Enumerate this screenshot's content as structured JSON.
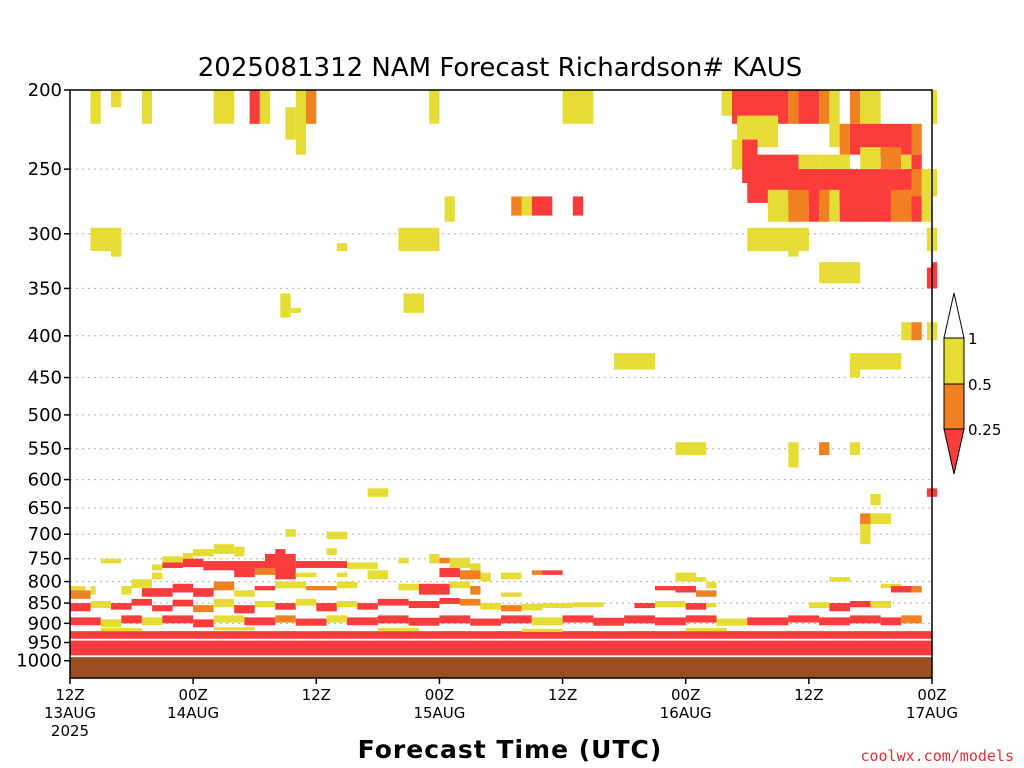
{
  "colors": {
    "high": "#e5dd35",
    "mid": "#f08020",
    "low": "#fa3c3c",
    "ground": "#9a4e22",
    "grid": "#b0b0b0"
  },
  "credit": "coolwx.com/models",
  "chart_data": {
    "type": "heatmap",
    "title": "2025081312 NAM Forecast Richardson# KAUS",
    "xlabel": "Forecast Time (UTC)",
    "ylabel": "",
    "y_scale": "log-pressure, inverted",
    "ylim": [
      1050,
      200
    ],
    "xlim": [
      0,
      84
    ],
    "grid": "horizontal dotted",
    "y_ticks": [
      200,
      250,
      300,
      350,
      400,
      450,
      500,
      550,
      600,
      650,
      700,
      750,
      800,
      850,
      900,
      950,
      1000
    ],
    "y_tick_labels": [
      "200",
      "250",
      "300",
      "350",
      "400",
      "450",
      "500",
      "550",
      "600",
      "650",
      "700",
      "750",
      "800",
      "850",
      "900",
      "950",
      "1000"
    ],
    "x_ticks": [
      {
        "hour": 0,
        "line1": "12Z",
        "line2": "13AUG",
        "line3": "2025"
      },
      {
        "hour": 12,
        "line1": "00Z",
        "line2": "14AUG",
        "line3": ""
      },
      {
        "hour": 24,
        "line1": "12Z",
        "line2": "",
        "line3": ""
      },
      {
        "hour": 36,
        "line1": "00Z",
        "line2": "15AUG",
        "line3": ""
      },
      {
        "hour": 48,
        "line1": "12Z",
        "line2": "",
        "line3": ""
      },
      {
        "hour": 60,
        "line1": "00Z",
        "line2": "16AUG",
        "line3": ""
      },
      {
        "hour": 72,
        "line1": "12Z",
        "line2": "",
        "line3": ""
      },
      {
        "hour": 84,
        "line1": "00Z",
        "line2": "17AUG",
        "line3": ""
      }
    ],
    "legend": {
      "placement": "right",
      "levels": [
        {
          "label": "1",
          "value": 1
        },
        {
          "label": "0.5",
          "value": 0.5
        },
        {
          "label": "0.25",
          "value": 0.25
        }
      ]
    },
    "ground_below_hpa": 990,
    "cells": [
      [
        2,
        3,
        200,
        220,
        "high"
      ],
      [
        4,
        5,
        200,
        210,
        "high"
      ],
      [
        7,
        8,
        200,
        220,
        "high"
      ],
      [
        14,
        16,
        200,
        220,
        "high"
      ],
      [
        17.5,
        18.5,
        200,
        220,
        "low"
      ],
      [
        18.5,
        19.5,
        200,
        220,
        "high"
      ],
      [
        22,
        23,
        200,
        220,
        "high"
      ],
      [
        23,
        24,
        200,
        220,
        "mid"
      ],
      [
        21,
        22,
        210,
        230,
        "high"
      ],
      [
        22,
        23,
        220,
        240,
        "high"
      ],
      [
        35,
        36,
        200,
        220,
        "high"
      ],
      [
        48,
        51,
        200,
        220,
        "high"
      ],
      [
        63.5,
        64.5,
        200,
        215,
        "high"
      ],
      [
        64.5,
        70,
        200,
        220,
        "low"
      ],
      [
        70,
        71,
        200,
        220,
        "mid"
      ],
      [
        71,
        73,
        200,
        220,
        "low"
      ],
      [
        73,
        74,
        200,
        220,
        "mid"
      ],
      [
        74,
        75,
        200,
        220,
        "high"
      ],
      [
        76,
        77,
        200,
        220,
        "mid"
      ],
      [
        77,
        79,
        200,
        220,
        "high"
      ],
      [
        84,
        84.5,
        200,
        220,
        "high"
      ],
      [
        65,
        67,
        215,
        230,
        "high"
      ],
      [
        67,
        69,
        215,
        235,
        "high"
      ],
      [
        74,
        75,
        220,
        235,
        "high"
      ],
      [
        75,
        76,
        220,
        240,
        "mid"
      ],
      [
        76,
        82,
        220,
        240,
        "low"
      ],
      [
        82,
        83,
        220,
        240,
        "mid"
      ],
      [
        64.5,
        65.5,
        230,
        250,
        "high"
      ],
      [
        65.5,
        67,
        230,
        260,
        "low"
      ],
      [
        67,
        71,
        240,
        265,
        "low"
      ],
      [
        71,
        73,
        240,
        260,
        "high"
      ],
      [
        73,
        76,
        240,
        265,
        "high"
      ],
      [
        77,
        79,
        235,
        250,
        "high"
      ],
      [
        79,
        81,
        235,
        250,
        "mid"
      ],
      [
        81,
        82,
        240,
        250,
        "high"
      ],
      [
        82,
        83,
        240,
        260,
        "low"
      ],
      [
        66,
        80,
        250,
        275,
        "low"
      ],
      [
        80,
        82,
        250,
        280,
        "low"
      ],
      [
        82,
        83,
        250,
        280,
        "mid"
      ],
      [
        83,
        84,
        250,
        270,
        "high"
      ],
      [
        84,
        84.5,
        250,
        270,
        "high"
      ],
      [
        68,
        70,
        265,
        290,
        "high"
      ],
      [
        70,
        72,
        265,
        290,
        "mid"
      ],
      [
        72,
        73,
        265,
        290,
        "low"
      ],
      [
        73,
        74,
        265,
        290,
        "mid"
      ],
      [
        74,
        75,
        265,
        290,
        "high"
      ],
      [
        75,
        80,
        265,
        290,
        "low"
      ],
      [
        80,
        82,
        265,
        290,
        "mid"
      ],
      [
        82,
        83,
        270,
        290,
        "low"
      ],
      [
        83,
        84,
        270,
        290,
        "high"
      ],
      [
        36.5,
        37.5,
        270,
        290,
        "high"
      ],
      [
        43,
        44,
        270,
        285,
        "mid"
      ],
      [
        44,
        45,
        270,
        285,
        "high"
      ],
      [
        45,
        47,
        270,
        285,
        "low"
      ],
      [
        49,
        50,
        270,
        285,
        "low"
      ],
      [
        2,
        5,
        295,
        315,
        "high"
      ],
      [
        4,
        5,
        305,
        320,
        "high"
      ],
      [
        26,
        27,
        308,
        315,
        "high"
      ],
      [
        32,
        36,
        295,
        315,
        "high"
      ],
      [
        66,
        72,
        295,
        315,
        "high"
      ],
      [
        70,
        71,
        305,
        320,
        "high"
      ],
      [
        83.5,
        84.5,
        295,
        315,
        "high"
      ],
      [
        73,
        77,
        325,
        345,
        "high"
      ],
      [
        84,
        84.5,
        325,
        350,
        "low"
      ],
      [
        83.5,
        84,
        330,
        350,
        "low"
      ],
      [
        20.5,
        21.5,
        355,
        380,
        "high"
      ],
      [
        21.5,
        22.5,
        370,
        375,
        "high"
      ],
      [
        32.5,
        34.5,
        355,
        375,
        "high"
      ],
      [
        81,
        82,
        385,
        405,
        "high"
      ],
      [
        82,
        83,
        385,
        405,
        "mid"
      ],
      [
        83.5,
        84.5,
        385,
        405,
        "high"
      ],
      [
        53,
        57,
        420,
        440,
        "high"
      ],
      [
        76,
        81,
        420,
        440,
        "high"
      ],
      [
        76,
        77,
        430,
        450,
        "high"
      ],
      [
        59,
        62,
        540,
        560,
        "high"
      ],
      [
        70,
        71,
        540,
        580,
        "high"
      ],
      [
        73,
        74,
        540,
        560,
        "mid"
      ],
      [
        76,
        77,
        540,
        560,
        "high"
      ],
      [
        29,
        31,
        615,
        630,
        "high"
      ],
      [
        83.5,
        84.5,
        615,
        630,
        "low"
      ],
      [
        78,
        79,
        625,
        645,
        "high"
      ],
      [
        77,
        78,
        660,
        680,
        "mid"
      ],
      [
        77,
        78,
        680,
        700,
        "high"
      ],
      [
        78,
        80,
        660,
        680,
        "high"
      ],
      [
        77,
        78,
        700,
        720,
        "high"
      ],
      [
        21,
        22,
        690,
        705,
        "high"
      ],
      [
        25,
        27,
        695,
        710,
        "high"
      ],
      [
        3,
        5,
        750,
        760,
        "high"
      ],
      [
        8,
        9,
        762,
        775,
        "high"
      ],
      [
        9,
        11,
        745,
        758,
        "high"
      ],
      [
        11,
        12,
        738,
        750,
        "high"
      ],
      [
        12,
        14,
        730,
        745,
        "high"
      ],
      [
        14,
        16,
        720,
        740,
        "high"
      ],
      [
        16,
        17,
        725,
        745,
        "high"
      ],
      [
        20,
        21,
        730,
        745,
        "low"
      ],
      [
        25,
        26,
        728,
        742,
        "high"
      ],
      [
        9,
        11,
        758,
        770,
        "low"
      ],
      [
        11,
        13,
        750,
        768,
        "low"
      ],
      [
        13,
        22,
        755,
        775,
        "low"
      ],
      [
        22,
        27,
        755,
        770,
        "low"
      ],
      [
        27,
        30,
        758,
        772,
        "high"
      ],
      [
        19,
        22,
        740,
        760,
        "low"
      ],
      [
        16,
        18,
        768,
        790,
        "low"
      ],
      [
        18,
        20,
        770,
        785,
        "mid"
      ],
      [
        20,
        22,
        770,
        795,
        "low"
      ],
      [
        22,
        24,
        780,
        790,
        "high"
      ],
      [
        32,
        33,
        748,
        760,
        "high"
      ],
      [
        35,
        36,
        740,
        760,
        "high"
      ],
      [
        36,
        37,
        748,
        760,
        "mid"
      ],
      [
        37,
        39,
        748,
        770,
        "high"
      ],
      [
        39,
        40,
        760,
        775,
        "high"
      ],
      [
        36,
        38,
        770,
        790,
        "low"
      ],
      [
        38,
        40,
        775,
        795,
        "mid"
      ],
      [
        40,
        41,
        780,
        800,
        "high"
      ],
      [
        42,
        44,
        780,
        795,
        "high"
      ],
      [
        45,
        46,
        775,
        785,
        "mid"
      ],
      [
        46,
        48,
        775,
        785,
        "low"
      ],
      [
        29,
        31,
        775,
        795,
        "high"
      ],
      [
        26,
        27,
        780,
        790,
        "high"
      ],
      [
        8,
        9,
        780,
        795,
        "high"
      ],
      [
        0,
        1.5,
        810,
        825,
        "high"
      ],
      [
        0,
        2,
        820,
        840,
        "mid"
      ],
      [
        2,
        2.5,
        810,
        830,
        "high"
      ],
      [
        5,
        6,
        810,
        830,
        "high"
      ],
      [
        6,
        8,
        795,
        815,
        "high"
      ],
      [
        7,
        10,
        815,
        835,
        "low"
      ],
      [
        10,
        12,
        805,
        825,
        "low"
      ],
      [
        12,
        14,
        815,
        835,
        "low"
      ],
      [
        14,
        16,
        800,
        820,
        "mid"
      ],
      [
        16,
        18,
        820,
        835,
        "high"
      ],
      [
        18,
        20,
        810,
        820,
        "low"
      ],
      [
        20,
        23,
        800,
        815,
        "high"
      ],
      [
        23,
        26,
        810,
        820,
        "mid"
      ],
      [
        26,
        28,
        800,
        815,
        "high"
      ],
      [
        32,
        34,
        805,
        820,
        "high"
      ],
      [
        34,
        37,
        805,
        830,
        "low"
      ],
      [
        37,
        39,
        800,
        815,
        "high"
      ],
      [
        39,
        40,
        810,
        830,
        "mid"
      ],
      [
        42,
        44,
        825,
        835,
        "high"
      ],
      [
        59,
        61,
        780,
        800,
        "high"
      ],
      [
        61,
        62,
        790,
        800,
        "high"
      ],
      [
        62,
        63,
        800,
        815,
        "high"
      ],
      [
        57,
        59,
        810,
        820,
        "low"
      ],
      [
        59,
        61,
        810,
        825,
        "low"
      ],
      [
        61,
        63,
        820,
        835,
        "mid"
      ],
      [
        79,
        81,
        805,
        815,
        "high"
      ],
      [
        80,
        82,
        810,
        825,
        "low"
      ],
      [
        82,
        83,
        810,
        825,
        "mid"
      ],
      [
        74,
        76,
        790,
        800,
        "high"
      ],
      [
        0,
        2,
        850,
        870,
        "low"
      ],
      [
        2,
        4,
        845,
        862,
        "high"
      ],
      [
        4,
        6,
        850,
        866,
        "low"
      ],
      [
        6,
        8,
        840,
        856,
        "low"
      ],
      [
        8,
        10,
        855,
        870,
        "low"
      ],
      [
        10,
        12,
        842,
        858,
        "low"
      ],
      [
        12,
        14,
        855,
        872,
        "mid"
      ],
      [
        14,
        16,
        840,
        860,
        "high"
      ],
      [
        16,
        18,
        855,
        875,
        "low"
      ],
      [
        18,
        20,
        845,
        860,
        "high"
      ],
      [
        20,
        22,
        850,
        866,
        "low"
      ],
      [
        22,
        24,
        840,
        856,
        "high"
      ],
      [
        24,
        26,
        850,
        870,
        "low"
      ],
      [
        26,
        28,
        845,
        860,
        "high"
      ],
      [
        28,
        30,
        850,
        866,
        "low"
      ],
      [
        30,
        33,
        840,
        856,
        "low"
      ],
      [
        33,
        36,
        845,
        862,
        "low"
      ],
      [
        36,
        38,
        838,
        852,
        "low"
      ],
      [
        38,
        40,
        840,
        856,
        "mid"
      ],
      [
        40,
        42,
        850,
        866,
        "high"
      ],
      [
        42,
        44,
        855,
        870,
        "mid"
      ],
      [
        44,
        46,
        852,
        868,
        "high"
      ],
      [
        46,
        49,
        850,
        862,
        "high"
      ],
      [
        49,
        52,
        848,
        860,
        "high"
      ],
      [
        55,
        57,
        850,
        862,
        "low"
      ],
      [
        57,
        60,
        845,
        860,
        "high"
      ],
      [
        60,
        62,
        850,
        866,
        "low"
      ],
      [
        62,
        63,
        850,
        860,
        "high"
      ],
      [
        72,
        74,
        848,
        862,
        "high"
      ],
      [
        74,
        76,
        850,
        870,
        "low"
      ],
      [
        76,
        78,
        845,
        860,
        "low"
      ],
      [
        78,
        80,
        845,
        862,
        "high"
      ],
      [
        0,
        3,
        885,
        905,
        "low"
      ],
      [
        3,
        5,
        890,
        910,
        "high"
      ],
      [
        5,
        7,
        880,
        900,
        "low"
      ],
      [
        7,
        9,
        885,
        905,
        "high"
      ],
      [
        9,
        12,
        880,
        900,
        "low"
      ],
      [
        12,
        14,
        890,
        910,
        "low"
      ],
      [
        14,
        17,
        880,
        898,
        "high"
      ],
      [
        17,
        20,
        885,
        905,
        "low"
      ],
      [
        20,
        22,
        880,
        898,
        "mid"
      ],
      [
        22,
        25,
        888,
        906,
        "low"
      ],
      [
        25,
        27,
        880,
        898,
        "high"
      ],
      [
        27,
        30,
        885,
        905,
        "low"
      ],
      [
        30,
        33,
        880,
        900,
        "low"
      ],
      [
        33,
        36,
        886,
        906,
        "low"
      ],
      [
        36,
        39,
        880,
        900,
        "low"
      ],
      [
        39,
        42,
        888,
        906,
        "low"
      ],
      [
        42,
        45,
        880,
        900,
        "low"
      ],
      [
        45,
        48,
        885,
        905,
        "high"
      ],
      [
        48,
        51,
        880,
        898,
        "low"
      ],
      [
        51,
        54,
        886,
        906,
        "low"
      ],
      [
        54,
        57,
        880,
        900,
        "low"
      ],
      [
        57,
        60,
        885,
        905,
        "low"
      ],
      [
        60,
        63,
        880,
        898,
        "low"
      ],
      [
        63,
        66,
        888,
        906,
        "high"
      ],
      [
        66,
        70,
        885,
        905,
        "low"
      ],
      [
        70,
        73,
        880,
        898,
        "low"
      ],
      [
        73,
        76,
        885,
        905,
        "low"
      ],
      [
        76,
        79,
        880,
        900,
        "low"
      ],
      [
        79,
        81,
        885,
        905,
        "low"
      ],
      [
        81,
        83,
        880,
        900,
        "mid"
      ],
      [
        0,
        84,
        920,
        940,
        "low"
      ],
      [
        3,
        7,
        912,
        920,
        "high"
      ],
      [
        14,
        18,
        910,
        918,
        "high"
      ],
      [
        30,
        34,
        912,
        920,
        "high"
      ],
      [
        44,
        48,
        914,
        922,
        "high"
      ],
      [
        60,
        64,
        912,
        920,
        "high"
      ],
      [
        0,
        84,
        945,
        985,
        "low"
      ]
    ]
  }
}
